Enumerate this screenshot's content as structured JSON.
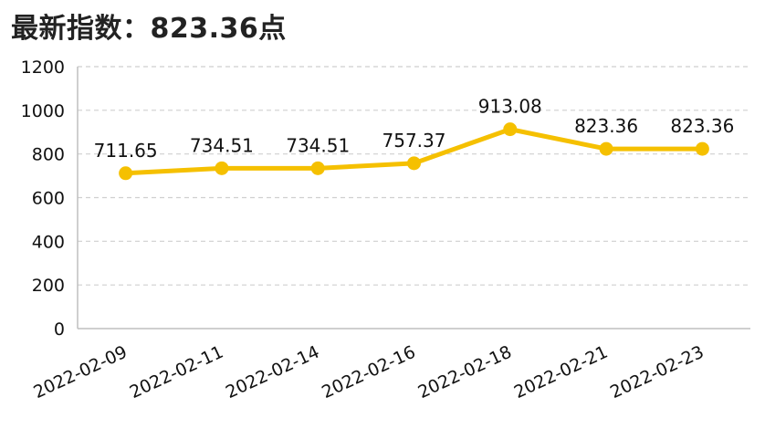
{
  "title": "最新指数：823.36点",
  "colors": {
    "series": "#F5C000",
    "grid": "#cfcfcf",
    "axis": "#bfbfbf"
  },
  "chart_data": {
    "type": "line",
    "title": "最新指数：823.36点",
    "xlabel": "",
    "ylabel": "",
    "categories": [
      "2022-02-09",
      "2022-02-11",
      "2022-02-14",
      "2022-02-16",
      "2022-02-18",
      "2022-02-21",
      "2022-02-23"
    ],
    "series": [
      {
        "values": [
          711.65,
          734.51,
          734.51,
          757.37,
          913.08,
          823.36,
          823.36
        ]
      }
    ],
    "data_labels": [
      "711.65",
      "734.51",
      "734.51",
      "757.37",
      "913.08",
      "823.36",
      "823.36"
    ],
    "ylim": [
      0,
      1200
    ],
    "yticks": [
      0,
      200,
      400,
      600,
      800,
      1000,
      1200
    ],
    "grid": true,
    "grid_style": "dashed-horizontal",
    "legend": "none"
  }
}
